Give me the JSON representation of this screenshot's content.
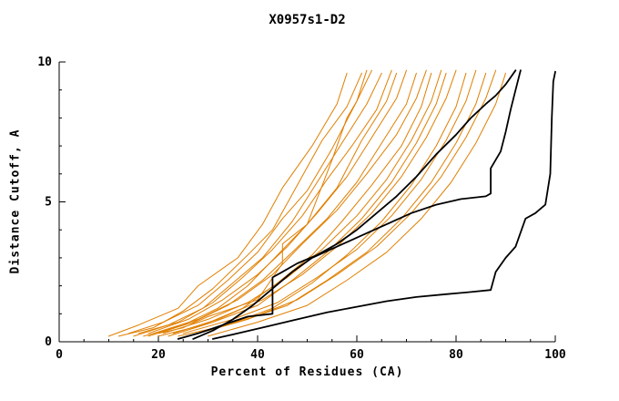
{
  "chart_data": {
    "type": "line",
    "title": "X0957s1-D2",
    "xlabel": "Percent of Residues (CA)",
    "ylabel": "Distance Cutoff, A",
    "xlim": [
      0,
      100
    ],
    "ylim": [
      0,
      10
    ],
    "x_ticks": [
      0,
      20,
      40,
      60,
      80,
      100
    ],
    "y_ticks": [
      0,
      5,
      10
    ],
    "grid": false,
    "legend": "none",
    "colors": {
      "orange": "#e07f00",
      "black": "#000000"
    },
    "series": [
      {
        "name": "orange-1",
        "color": "orange",
        "points": [
          [
            10,
            0.2
          ],
          [
            16,
            0.6
          ],
          [
            24,
            1.2
          ],
          [
            28,
            2.0
          ],
          [
            36,
            3.0
          ],
          [
            41,
            4.2
          ],
          [
            45,
            5.5
          ],
          [
            51,
            7.0
          ],
          [
            56,
            8.5
          ],
          [
            58,
            9.6
          ]
        ]
      },
      {
        "name": "orange-2",
        "color": "orange",
        "points": [
          [
            12,
            0.2
          ],
          [
            19,
            0.5
          ],
          [
            25,
            1.1
          ],
          [
            31,
            1.9
          ],
          [
            38,
            3.1
          ],
          [
            43,
            4.0
          ],
          [
            48,
            5.6
          ],
          [
            53,
            7.2
          ],
          [
            58,
            8.4
          ],
          [
            61,
            9.6
          ]
        ]
      },
      {
        "name": "orange-3",
        "color": "orange",
        "points": [
          [
            14,
            0.3
          ],
          [
            21,
            0.7
          ],
          [
            28,
            1.3
          ],
          [
            34,
            2.2
          ],
          [
            40,
            3.2
          ],
          [
            45,
            4.4
          ],
          [
            50,
            5.4
          ],
          [
            55,
            6.9
          ],
          [
            60,
            8.6
          ],
          [
            63,
            9.7
          ]
        ]
      },
      {
        "name": "orange-4",
        "color": "orange",
        "points": [
          [
            15,
            0.2
          ],
          [
            22,
            0.6
          ],
          [
            29,
            1.2
          ],
          [
            35,
            2.1
          ],
          [
            41,
            3.0
          ],
          [
            47,
            4.3
          ],
          [
            52,
            5.7
          ],
          [
            57,
            7.1
          ],
          [
            62,
            8.5
          ],
          [
            65,
            9.6
          ]
        ]
      },
      {
        "name": "orange-5",
        "color": "orange",
        "points": [
          [
            16,
            0.3
          ],
          [
            24,
            0.7
          ],
          [
            31,
            1.4
          ],
          [
            37,
            2.3
          ],
          [
            43,
            3.3
          ],
          [
            49,
            4.5
          ],
          [
            54,
            5.8
          ],
          [
            59,
            7.0
          ],
          [
            64,
            8.3
          ],
          [
            67,
            9.7
          ]
        ]
      },
      {
        "name": "orange-6",
        "color": "orange",
        "points": [
          [
            17,
            0.2
          ],
          [
            25,
            0.6
          ],
          [
            32,
            1.2
          ],
          [
            38,
            2.0
          ],
          [
            44,
            3.1
          ],
          [
            50,
            4.2
          ],
          [
            56,
            5.5
          ],
          [
            61,
            7.2
          ],
          [
            66,
            8.6
          ],
          [
            68,
            9.6
          ]
        ]
      },
      {
        "name": "orange-7",
        "color": "orange",
        "points": [
          [
            18,
            0.3
          ],
          [
            26,
            0.8
          ],
          [
            33,
            1.5
          ],
          [
            40,
            2.4
          ],
          [
            46,
            3.4
          ],
          [
            52,
            4.6
          ],
          [
            58,
            5.9
          ],
          [
            63,
            7.3
          ],
          [
            68,
            8.7
          ],
          [
            70,
            9.7
          ]
        ]
      },
      {
        "name": "orange-8",
        "color": "orange",
        "points": [
          [
            18,
            0.2
          ],
          [
            27,
            0.7
          ],
          [
            34,
            1.3
          ],
          [
            41,
            2.2
          ],
          [
            47,
            3.2
          ],
          [
            54,
            4.4
          ],
          [
            60,
            5.7
          ],
          [
            65,
            7.1
          ],
          [
            70,
            8.5
          ],
          [
            72,
            9.6
          ]
        ]
      },
      {
        "name": "orange-9",
        "color": "orange",
        "points": [
          [
            19,
            0.3
          ],
          [
            28,
            0.8
          ],
          [
            36,
            1.5
          ],
          [
            43,
            2.4
          ],
          [
            49,
            3.5
          ],
          [
            56,
            4.7
          ],
          [
            62,
            6.0
          ],
          [
            68,
            7.4
          ],
          [
            72,
            8.7
          ],
          [
            74,
            9.7
          ]
        ]
      },
      {
        "name": "orange-10",
        "color": "orange",
        "points": [
          [
            20,
            0.2
          ],
          [
            29,
            0.6
          ],
          [
            37,
            1.2
          ],
          [
            44,
            2.1
          ],
          [
            51,
            3.1
          ],
          [
            57,
            4.3
          ],
          [
            63,
            5.6
          ],
          [
            69,
            7.0
          ],
          [
            73,
            8.4
          ],
          [
            75,
            9.6
          ]
        ]
      },
      {
        "name": "orange-11",
        "color": "orange",
        "points": [
          [
            21,
            0.3
          ],
          [
            30,
            0.8
          ],
          [
            38,
            1.4
          ],
          [
            46,
            2.3
          ],
          [
            53,
            3.3
          ],
          [
            60,
            4.5
          ],
          [
            66,
            5.8
          ],
          [
            71,
            7.2
          ],
          [
            75,
            8.6
          ],
          [
            77,
            9.7
          ]
        ]
      },
      {
        "name": "orange-12",
        "color": "orange",
        "points": [
          [
            22,
            0.2
          ],
          [
            31,
            0.7
          ],
          [
            40,
            1.3
          ],
          [
            47,
            2.2
          ],
          [
            54,
            3.2
          ],
          [
            61,
            4.4
          ],
          [
            67,
            5.7
          ],
          [
            72,
            7.1
          ],
          [
            76,
            8.5
          ],
          [
            78,
            9.6
          ]
        ]
      },
      {
        "name": "orange-13",
        "color": "orange",
        "points": [
          [
            23,
            0.3
          ],
          [
            32,
            0.8
          ],
          [
            41,
            1.5
          ],
          [
            49,
            2.4
          ],
          [
            56,
            3.4
          ],
          [
            63,
            4.6
          ],
          [
            69,
            5.9
          ],
          [
            74,
            7.3
          ],
          [
            78,
            8.7
          ],
          [
            80,
            9.7
          ]
        ]
      },
      {
        "name": "orange-14",
        "color": "orange",
        "points": [
          [
            24,
            0.2
          ],
          [
            34,
            0.6
          ],
          [
            43,
            1.2
          ],
          [
            51,
            2.1
          ],
          [
            58,
            3.1
          ],
          [
            65,
            4.3
          ],
          [
            71,
            5.6
          ],
          [
            76,
            7.0
          ],
          [
            80,
            8.4
          ],
          [
            82,
            9.6
          ]
        ]
      },
      {
        "name": "orange-15",
        "color": "orange",
        "points": [
          [
            25,
            0.3
          ],
          [
            35,
            0.8
          ],
          [
            44,
            1.4
          ],
          [
            52,
            2.3
          ],
          [
            60,
            3.3
          ],
          [
            67,
            4.5
          ],
          [
            73,
            5.8
          ],
          [
            78,
            7.2
          ],
          [
            82,
            8.6
          ],
          [
            84,
            9.7
          ]
        ]
      },
      {
        "name": "orange-16",
        "color": "orange",
        "points": [
          [
            26,
            0.2
          ],
          [
            36,
            0.7
          ],
          [
            46,
            1.3
          ],
          [
            54,
            2.2
          ],
          [
            62,
            3.2
          ],
          [
            69,
            4.4
          ],
          [
            75,
            5.7
          ],
          [
            80,
            7.1
          ],
          [
            84,
            8.5
          ],
          [
            86,
            9.6
          ]
        ]
      },
      {
        "name": "orange-17",
        "color": "orange",
        "points": [
          [
            28,
            0.3
          ],
          [
            38,
            0.8
          ],
          [
            48,
            1.5
          ],
          [
            56,
            2.4
          ],
          [
            64,
            3.4
          ],
          [
            71,
            4.6
          ],
          [
            77,
            5.9
          ],
          [
            82,
            7.3
          ],
          [
            86,
            8.7
          ],
          [
            88,
            9.7
          ]
        ]
      },
      {
        "name": "orange-18",
        "color": "orange",
        "points": [
          [
            30,
            0.2
          ],
          [
            40,
            0.7
          ],
          [
            50,
            1.3
          ],
          [
            58,
            2.2
          ],
          [
            66,
            3.2
          ],
          [
            73,
            4.4
          ],
          [
            79,
            5.7
          ],
          [
            84,
            7.1
          ],
          [
            88,
            8.5
          ],
          [
            90,
            9.6
          ]
        ]
      },
      {
        "name": "orange-19",
        "color": "orange",
        "points": [
          [
            20,
            0.3
          ],
          [
            25,
            0.5
          ],
          [
            30,
            0.9
          ],
          [
            35,
            1.2
          ],
          [
            40,
            1.5
          ],
          [
            45,
            2.8
          ],
          [
            45,
            3.5
          ],
          [
            50,
            4.2
          ],
          [
            55,
            6.5
          ],
          [
            58,
            8.0
          ],
          [
            60,
            8.6
          ],
          [
            62,
            9.7
          ]
        ]
      },
      {
        "name": "black-1",
        "color": "black",
        "points": [
          [
            24,
            0.1
          ],
          [
            28,
            0.3
          ],
          [
            33,
            0.6
          ],
          [
            38,
            0.9
          ],
          [
            43,
            1.0
          ],
          [
            43,
            2.3
          ],
          [
            45,
            2.5
          ],
          [
            48,
            2.8
          ],
          [
            52,
            3.1
          ],
          [
            56,
            3.5
          ],
          [
            60,
            4.0
          ],
          [
            64,
            4.6
          ],
          [
            68,
            5.2
          ],
          [
            72,
            5.9
          ],
          [
            76,
            6.7
          ],
          [
            80,
            7.4
          ],
          [
            83,
            8.0
          ],
          [
            86,
            8.5
          ],
          [
            88,
            8.8
          ],
          [
            90,
            9.2
          ],
          [
            92,
            9.7
          ]
        ]
      },
      {
        "name": "black-2",
        "color": "black",
        "points": [
          [
            27,
            0.1
          ],
          [
            31,
            0.4
          ],
          [
            35,
            0.8
          ],
          [
            39,
            1.3
          ],
          [
            43,
            1.9
          ],
          [
            47,
            2.5
          ],
          [
            51,
            3.0
          ],
          [
            56,
            3.4
          ],
          [
            61,
            3.8
          ],
          [
            66,
            4.2
          ],
          [
            71,
            4.6
          ],
          [
            76,
            4.9
          ],
          [
            81,
            5.1
          ],
          [
            86,
            5.2
          ],
          [
            87,
            5.3
          ],
          [
            87,
            6.2
          ],
          [
            89,
            6.8
          ],
          [
            90,
            7.5
          ],
          [
            91,
            8.3
          ],
          [
            92,
            9.0
          ],
          [
            93,
            9.7
          ]
        ]
      },
      {
        "name": "black-3",
        "color": "black",
        "points": [
          [
            31,
            0.1
          ],
          [
            36,
            0.3
          ],
          [
            42,
            0.55
          ],
          [
            48,
            0.8
          ],
          [
            54,
            1.05
          ],
          [
            60,
            1.25
          ],
          [
            66,
            1.45
          ],
          [
            72,
            1.6
          ],
          [
            78,
            1.7
          ],
          [
            83,
            1.78
          ],
          [
            87,
            1.85
          ],
          [
            88,
            2.5
          ],
          [
            90,
            3.0
          ],
          [
            92,
            3.4
          ],
          [
            94,
            4.4
          ],
          [
            96,
            4.6
          ],
          [
            97,
            4.75
          ],
          [
            98,
            4.9
          ],
          [
            99,
            6.0
          ],
          [
            99.3,
            8.0
          ],
          [
            99.6,
            9.3
          ],
          [
            100,
            9.65
          ]
        ]
      }
    ]
  }
}
